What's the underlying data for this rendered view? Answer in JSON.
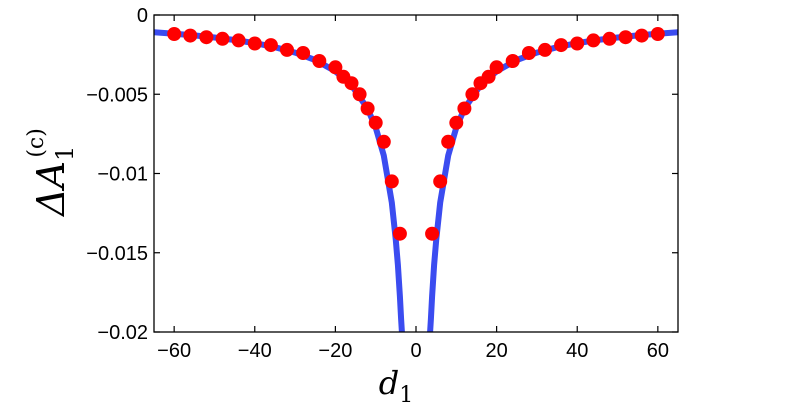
{
  "chart_data": {
    "type": "scatter",
    "xlabel": "d",
    "xlabel_sub": "1",
    "ylabel": "ΔA",
    "ylabel_sub": "1",
    "ylabel_sup": "(c)",
    "xlim": [
      -65,
      65
    ],
    "ylim": [
      -0.02,
      0
    ],
    "x_ticks": [
      -60,
      -40,
      -20,
      0,
      20,
      40,
      60
    ],
    "x_tick_labels": [
      "−60",
      "−40",
      "−20",
      "0",
      "20",
      "40",
      "60"
    ],
    "y_ticks": [
      0,
      -0.005,
      -0.01,
      -0.015,
      -0.02
    ],
    "y_tick_labels": [
      "0",
      "−0.005",
      "−0.01",
      "−0.015",
      "−0.02"
    ],
    "grid": false,
    "series": [
      {
        "kind": "line",
        "color": "#3b4cf0",
        "x": [
          -65,
          -60,
          -55,
          -50,
          -45,
          -40,
          -35,
          -30,
          -25,
          -20,
          -16,
          -12,
          -10,
          -8,
          -6,
          -5,
          -4.5,
          -4,
          -3.7,
          -3.5,
          3.5,
          3.7,
          4,
          4.5,
          5,
          6,
          8,
          10,
          12,
          16,
          20,
          25,
          30,
          35,
          40,
          45,
          50,
          55,
          60,
          65
        ],
        "y": [
          -0.00109,
          -0.00118,
          -0.00129,
          -0.00142,
          -0.00158,
          -0.00177,
          -0.00203,
          -0.00237,
          -0.00284,
          -0.00355,
          -0.00443,
          -0.00591,
          -0.0071,
          -0.00887,
          -0.01183,
          -0.0142,
          -0.01577,
          -0.01775,
          -0.01918,
          -0.02,
          -0.02,
          -0.01918,
          -0.01775,
          -0.01577,
          -0.0142,
          -0.01183,
          -0.00887,
          -0.0071,
          -0.00591,
          -0.00443,
          -0.00355,
          -0.00284,
          -0.00237,
          -0.00203,
          -0.00177,
          -0.00158,
          -0.00142,
          -0.00129,
          -0.00118,
          -0.00109
        ]
      },
      {
        "kind": "markers",
        "color": "#ff0000",
        "x": [
          -60,
          -56,
          -52,
          -48,
          -44,
          -40,
          -36,
          -32,
          -28,
          -24,
          -20,
          -18,
          -16,
          -14,
          -12,
          -10,
          -8,
          -6,
          -4,
          4,
          6,
          8,
          10,
          12,
          14,
          16,
          18,
          20,
          24,
          28,
          32,
          36,
          40,
          44,
          48,
          52,
          56,
          60
        ],
        "y": [
          -0.0012,
          -0.0013,
          -0.0014,
          -0.0015,
          -0.0016,
          -0.0018,
          -0.0019,
          -0.0022,
          -0.0024,
          -0.0029,
          -0.0033,
          -0.0039,
          -0.0043,
          -0.005,
          -0.0059,
          -0.0068,
          -0.008,
          -0.0105,
          -0.0138,
          -0.0138,
          -0.0105,
          -0.008,
          -0.0068,
          -0.0059,
          -0.005,
          -0.0043,
          -0.0039,
          -0.0033,
          -0.0029,
          -0.0024,
          -0.0022,
          -0.0019,
          -0.0018,
          -0.0016,
          -0.0015,
          -0.0014,
          -0.0013,
          -0.0012
        ]
      }
    ]
  }
}
